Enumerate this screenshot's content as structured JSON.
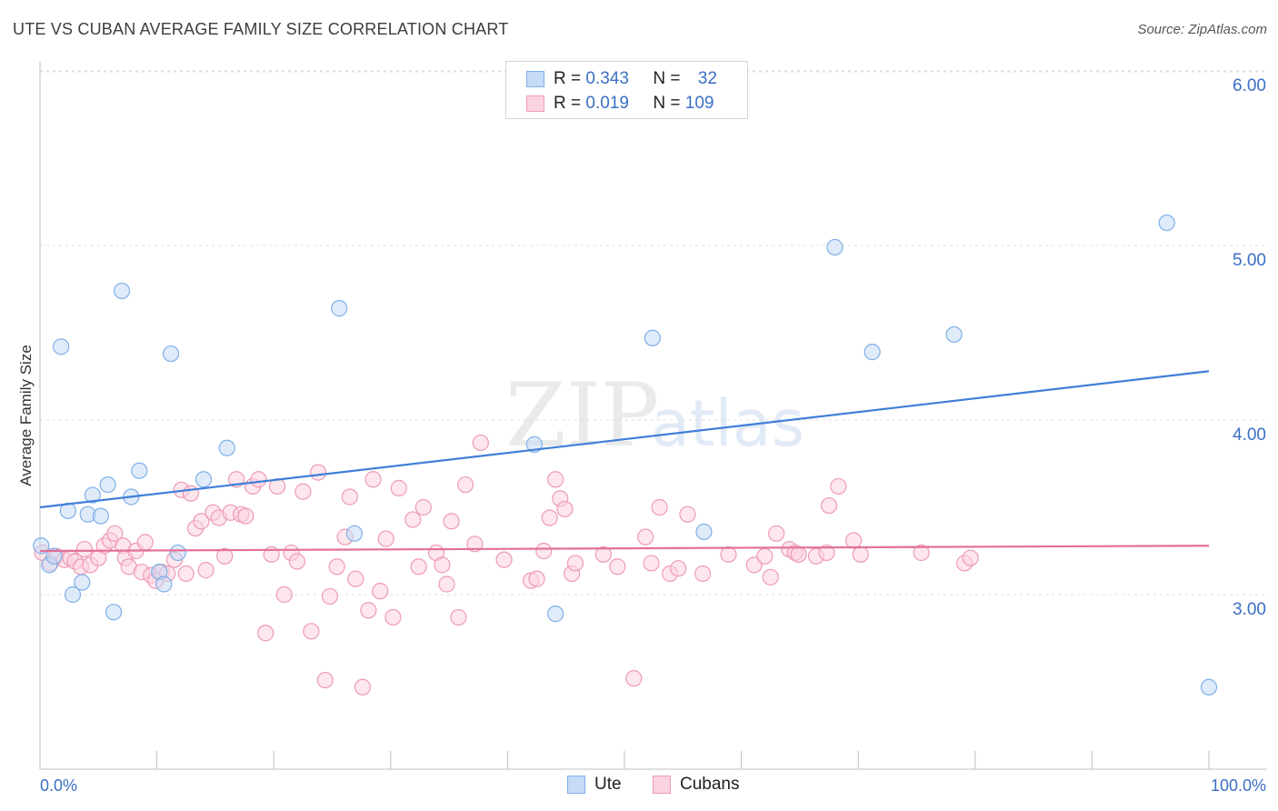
{
  "header": {
    "title": "UTE VS CUBAN AVERAGE FAMILY SIZE CORRELATION CHART",
    "source": "Source: ZipAtlas.com"
  },
  "watermark": {
    "zip": "ZIP",
    "atlas": "atlas"
  },
  "legend": {
    "rows": [
      {
        "r_label": "R =",
        "r_value": "0.343",
        "n_label": "N =",
        "n_value": "32",
        "color": "#7eb0e8",
        "fill": "#c6dbf5"
      },
      {
        "r_label": "R =",
        "r_value": "0.019",
        "n_label": "N =",
        "n_value": "109",
        "color": "#ee9ab5",
        "fill": "#fbd3df"
      }
    ]
  },
  "bottom_legend": [
    {
      "label": "Ute",
      "color": "#7eb0e8",
      "fill": "#c6dbf5"
    },
    {
      "label": "Cubans",
      "color": "#ee9ab5",
      "fill": "#fbd3df"
    }
  ],
  "chart_data": {
    "type": "scatter",
    "title": "UTE VS CUBAN AVERAGE FAMILY SIZE CORRELATION CHART",
    "xlabel": "",
    "ylabel": "Average Family Size",
    "xlim": [
      0,
      100
    ],
    "ylim": [
      2.0,
      6.1
    ],
    "x_tick_labels": [
      "0.0%",
      "100.0%"
    ],
    "y_ticks": [
      3.0,
      4.0,
      5.0,
      6.0
    ],
    "y_tick_labels": [
      "3.00",
      "4.00",
      "5.00",
      "6.00"
    ],
    "grid": true,
    "legend_position": "top-center",
    "series": [
      {
        "name": "Ute",
        "color": "#3f7fd8",
        "marker_fill": "#c6dbf5",
        "marker_stroke": "#7eb0e8",
        "trend": {
          "x": [
            0,
            100
          ],
          "y": [
            3.5,
            4.28
          ]
        },
        "points": [
          [
            0.1,
            3.28
          ],
          [
            0.8,
            3.17
          ],
          [
            1.2,
            3.22
          ],
          [
            1.8,
            4.42
          ],
          [
            2.4,
            3.48
          ],
          [
            2.8,
            3.0
          ],
          [
            3.6,
            3.07
          ],
          [
            4.1,
            3.46
          ],
          [
            4.5,
            3.57
          ],
          [
            5.2,
            3.45
          ],
          [
            5.8,
            3.63
          ],
          [
            6.3,
            2.9
          ],
          [
            7.0,
            4.74
          ],
          [
            7.8,
            3.56
          ],
          [
            8.5,
            3.71
          ],
          [
            10.2,
            3.13
          ],
          [
            10.6,
            3.06
          ],
          [
            11.2,
            4.38
          ],
          [
            11.8,
            3.24
          ],
          [
            14.0,
            3.66
          ],
          [
            16.0,
            3.84
          ],
          [
            25.6,
            4.64
          ],
          [
            26.9,
            3.35
          ],
          [
            42.3,
            3.86
          ],
          [
            44.1,
            2.89
          ],
          [
            52.4,
            4.47
          ],
          [
            56.8,
            3.36
          ],
          [
            68.0,
            4.99
          ],
          [
            71.2,
            4.39
          ],
          [
            78.2,
            4.49
          ],
          [
            96.4,
            5.13
          ],
          [
            100.0,
            2.47
          ]
        ]
      },
      {
        "name": "Cubans",
        "color": "#e2709b",
        "marker_fill": "#fbd3df",
        "marker_stroke": "#ee9ab5",
        "trend": {
          "x": [
            0,
            100
          ],
          "y": [
            3.25,
            3.28
          ]
        },
        "points": [
          [
            0.2,
            3.24
          ],
          [
            0.9,
            3.18
          ],
          [
            1.4,
            3.22
          ],
          [
            2.1,
            3.2
          ],
          [
            2.6,
            3.21
          ],
          [
            3.0,
            3.19
          ],
          [
            3.5,
            3.16
          ],
          [
            3.8,
            3.26
          ],
          [
            4.3,
            3.17
          ],
          [
            5.0,
            3.21
          ],
          [
            5.5,
            3.28
          ],
          [
            6.0,
            3.31
          ],
          [
            6.4,
            3.35
          ],
          [
            7.1,
            3.28
          ],
          [
            7.3,
            3.21
          ],
          [
            7.6,
            3.16
          ],
          [
            8.2,
            3.25
          ],
          [
            8.7,
            3.13
          ],
          [
            9.0,
            3.3
          ],
          [
            9.5,
            3.11
          ],
          [
            9.9,
            3.08
          ],
          [
            10.4,
            3.13
          ],
          [
            10.9,
            3.12
          ],
          [
            11.5,
            3.2
          ],
          [
            12.1,
            3.6
          ],
          [
            12.5,
            3.12
          ],
          [
            12.9,
            3.58
          ],
          [
            13.3,
            3.38
          ],
          [
            13.8,
            3.42
          ],
          [
            14.2,
            3.14
          ],
          [
            14.8,
            3.47
          ],
          [
            15.3,
            3.44
          ],
          [
            15.8,
            3.22
          ],
          [
            16.3,
            3.47
          ],
          [
            16.8,
            3.66
          ],
          [
            17.2,
            3.46
          ],
          [
            17.6,
            3.45
          ],
          [
            18.2,
            3.62
          ],
          [
            18.7,
            3.66
          ],
          [
            19.3,
            2.78
          ],
          [
            19.8,
            3.23
          ],
          [
            20.3,
            3.62
          ],
          [
            20.9,
            3.0
          ],
          [
            21.5,
            3.24
          ],
          [
            22.0,
            3.19
          ],
          [
            22.5,
            3.59
          ],
          [
            23.2,
            2.79
          ],
          [
            23.8,
            3.7
          ],
          [
            24.4,
            2.51
          ],
          [
            24.8,
            2.99
          ],
          [
            25.4,
            3.16
          ],
          [
            26.1,
            3.33
          ],
          [
            26.5,
            3.56
          ],
          [
            27.0,
            3.09
          ],
          [
            27.6,
            2.47
          ],
          [
            28.1,
            2.91
          ],
          [
            28.5,
            3.66
          ],
          [
            29.1,
            3.02
          ],
          [
            29.6,
            3.32
          ],
          [
            30.2,
            2.87
          ],
          [
            30.7,
            3.61
          ],
          [
            31.9,
            3.43
          ],
          [
            32.4,
            3.16
          ],
          [
            32.8,
            3.5
          ],
          [
            33.9,
            3.24
          ],
          [
            34.4,
            3.17
          ],
          [
            34.8,
            3.06
          ],
          [
            35.2,
            3.42
          ],
          [
            35.8,
            2.87
          ],
          [
            36.4,
            3.63
          ],
          [
            37.2,
            3.29
          ],
          [
            37.7,
            3.87
          ],
          [
            39.7,
            3.2
          ],
          [
            42.0,
            3.08
          ],
          [
            42.5,
            3.09
          ],
          [
            43.1,
            3.25
          ],
          [
            43.6,
            3.44
          ],
          [
            44.1,
            3.66
          ],
          [
            44.5,
            3.55
          ],
          [
            44.9,
            3.49
          ],
          [
            45.5,
            3.12
          ],
          [
            45.8,
            3.18
          ],
          [
            48.2,
            3.23
          ],
          [
            49.4,
            3.16
          ],
          [
            50.8,
            2.52
          ],
          [
            51.8,
            3.33
          ],
          [
            52.3,
            3.18
          ],
          [
            53.0,
            3.5
          ],
          [
            53.9,
            3.12
          ],
          [
            54.6,
            3.15
          ],
          [
            55.4,
            3.46
          ],
          [
            56.7,
            3.12
          ],
          [
            58.9,
            3.23
          ],
          [
            61.1,
            3.17
          ],
          [
            62.0,
            3.22
          ],
          [
            62.5,
            3.1
          ],
          [
            63.0,
            3.35
          ],
          [
            64.1,
            3.26
          ],
          [
            64.6,
            3.24
          ],
          [
            64.9,
            3.23
          ],
          [
            66.4,
            3.22
          ],
          [
            67.3,
            3.24
          ],
          [
            67.5,
            3.51
          ],
          [
            68.3,
            3.62
          ],
          [
            69.6,
            3.31
          ],
          [
            70.2,
            3.23
          ],
          [
            75.4,
            3.24
          ],
          [
            79.1,
            3.18
          ],
          [
            79.6,
            3.21
          ]
        ]
      }
    ]
  }
}
